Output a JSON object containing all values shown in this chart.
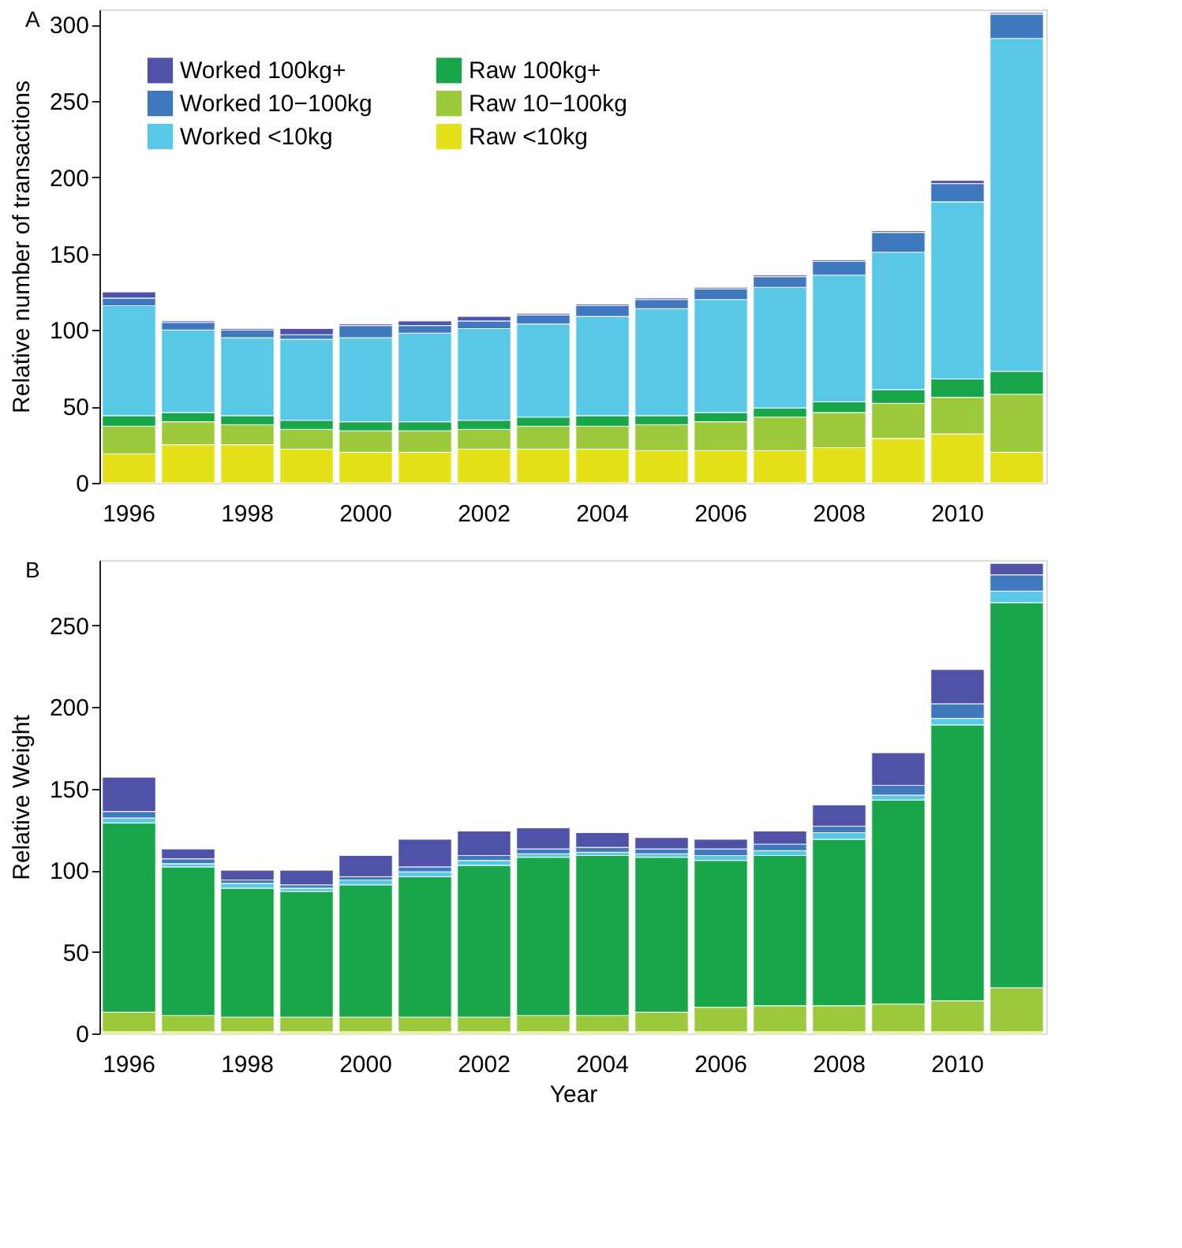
{
  "chart_data": [
    {
      "type": "bar",
      "title": "A",
      "ylabel": "Relative number of transactions",
      "stacked": true,
      "legend": "top left",
      "grid": false,
      "categories": [
        "1996",
        null,
        "1998",
        null,
        "2000",
        null,
        "2002",
        null,
        "2004",
        null,
        "2006",
        null,
        "2008",
        null,
        "2010",
        null
      ],
      "ylim": [
        0,
        310
      ],
      "yticks": [
        0,
        50,
        100,
        150,
        200,
        250,
        300
      ],
      "series": [
        {
          "name": "Raw <10kg",
          "color": "#e3e21a",
          "values": [
            19,
            25,
            25,
            22,
            20,
            20,
            22,
            22,
            22,
            21,
            21,
            21,
            23,
            29,
            32,
            20
          ]
        },
        {
          "name": "Raw 10−100kg",
          "color": "#9cc93b",
          "values": [
            18,
            15,
            13,
            13,
            14,
            14,
            13,
            15,
            15,
            17,
            19,
            22,
            23,
            23,
            24,
            38
          ]
        },
        {
          "name": "Raw 100kg+",
          "color": "#19a64a",
          "values": [
            7,
            6,
            6,
            6,
            6,
            6,
            6,
            6,
            7,
            6,
            6,
            6,
            7,
            9,
            12,
            15
          ]
        },
        {
          "name": "Worked <10kg",
          "color": "#58c8e6",
          "values": [
            72,
            54,
            51,
            53,
            55,
            58,
            60,
            61,
            65,
            70,
            74,
            79,
            83,
            90,
            116,
            218
          ]
        },
        {
          "name": "Worked 10−100kg",
          "color": "#3f78bd",
          "values": [
            5,
            5,
            5,
            3,
            8,
            5,
            5,
            6,
            7,
            6,
            7,
            7,
            9,
            13,
            12,
            16
          ]
        },
        {
          "name": "Worked 100kg+",
          "color": "#4f52a6",
          "values": [
            4,
            1,
            1,
            4,
            1,
            3,
            3,
            1,
            1,
            1,
            1,
            1,
            1,
            1,
            2,
            1
          ]
        }
      ]
    },
    {
      "type": "bar",
      "title": "B",
      "ylabel": "Relative Weight",
      "xlabel": "Year",
      "stacked": true,
      "grid": false,
      "categories": [
        "1996",
        null,
        "1998",
        null,
        "2000",
        null,
        "2002",
        null,
        "2004",
        null,
        "2006",
        null,
        "2008",
        null,
        "2010",
        null
      ],
      "ylim": [
        0,
        290
      ],
      "yticks": [
        0,
        50,
        100,
        150,
        200,
        250
      ],
      "series": [
        {
          "color": "#e3e21a",
          "values": [
            1,
            1,
            1,
            1,
            1,
            1,
            1,
            1,
            1,
            1,
            1,
            1,
            1,
            1,
            1,
            1
          ]
        },
        {
          "color": "#9cc93b",
          "values": [
            12,
            10,
            9,
            9,
            9,
            9,
            9,
            10,
            10,
            12,
            15,
            16,
            16,
            17,
            19,
            27
          ]
        },
        {
          "color": "#19a64a",
          "values": [
            116,
            91,
            79,
            77,
            81,
            86,
            93,
            97,
            98,
            95,
            90,
            92,
            102,
            125,
            169,
            236
          ]
        },
        {
          "color": "#58c8e6",
          "values": [
            3,
            2,
            3,
            2,
            3,
            3,
            3,
            2,
            2,
            2,
            3,
            3,
            4,
            3,
            4,
            7
          ]
        },
        {
          "color": "#3f78bd",
          "values": [
            4,
            3,
            2,
            2,
            2,
            3,
            3,
            3,
            3,
            3,
            4,
            4,
            4,
            6,
            9,
            10
          ]
        },
        {
          "color": "#4f52a6",
          "values": [
            21,
            6,
            6,
            9,
            13,
            17,
            15,
            13,
            9,
            7,
            6,
            8,
            13,
            20,
            21,
            7
          ]
        }
      ]
    }
  ]
}
